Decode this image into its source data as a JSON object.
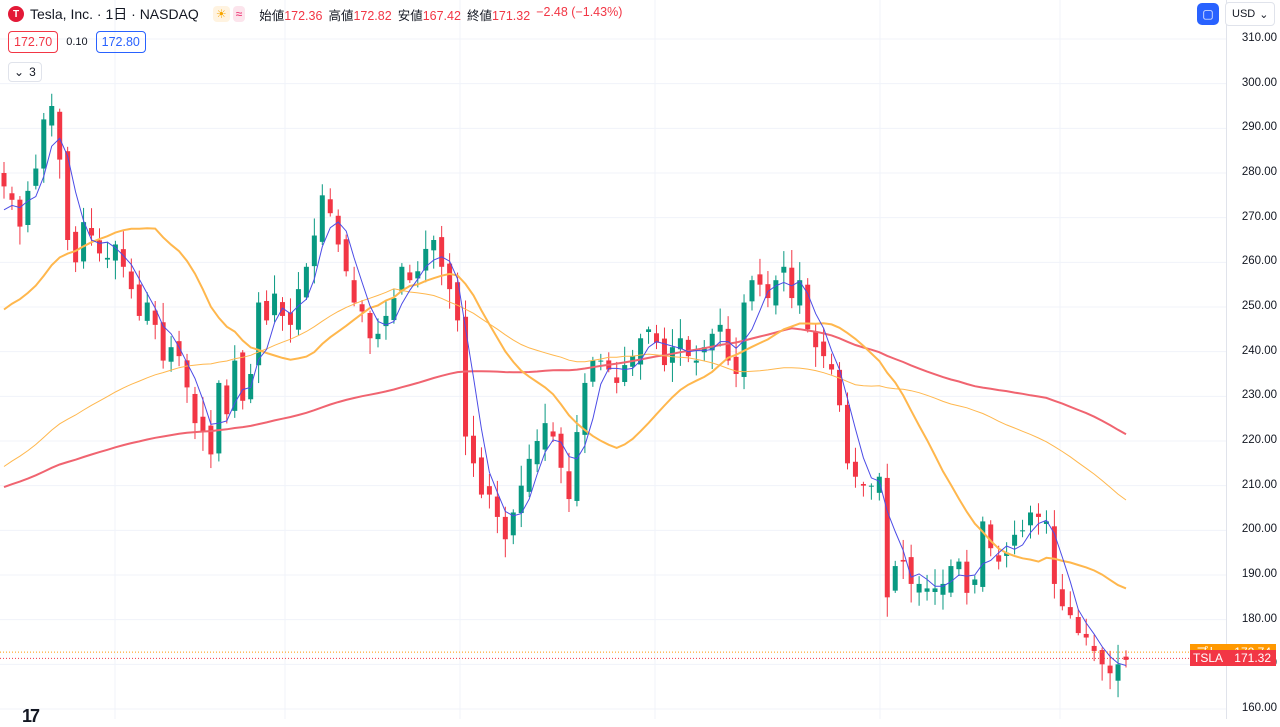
{
  "header": {
    "logo_letter": "T",
    "title": "Tesla, Inc. · 1日 · NASDAQ",
    "market_icons": [
      "sun-icon",
      "wave-icon"
    ],
    "ohlc": [
      {
        "key": "始値",
        "value": "172.36"
      },
      {
        "key": "高値",
        "value": "172.82"
      },
      {
        "key": "安値",
        "value": "167.42"
      },
      {
        "key": "終値",
        "value": "171.32"
      },
      {
        "key": "",
        "value": "−2.48 (−1.43%)"
      }
    ]
  },
  "quote": {
    "sell": "172.70",
    "spread": "0.10",
    "buy": "172.80"
  },
  "indicators_toggle": {
    "icon": "chevron-down-icon",
    "count": "3"
  },
  "toolbar": {
    "currency": "USD",
    "snap_icon": "snapshot-icon"
  },
  "price_tags": [
    {
      "name": "プレ",
      "price": "172.74",
      "color": "#ff9800"
    },
    {
      "name": "TSLA",
      "price": "171.32",
      "color": "#f23645"
    }
  ],
  "colors": {
    "up": "#089981",
    "down": "#f23645",
    "ma_fast": "#4c4ce6",
    "ma_mid": "#ffb74d",
    "ma_slow_thin": "#ffb74d",
    "ma_long": "#f06470"
  },
  "chart_data": {
    "type": "candlestick",
    "ylim": [
      158,
      313
    ],
    "y_ticks": [
      "310.00",
      "300.00",
      "290.00",
      "280.00",
      "270.00",
      "260.00",
      "250.00",
      "240.00",
      "230.00",
      "220.00",
      "210.00",
      "200.00",
      "190.00",
      "180.00",
      "170.00",
      "160.00"
    ],
    "close": [
      277,
      274,
      268,
      276,
      281,
      292,
      295,
      283,
      265,
      260,
      269,
      266,
      262,
      261,
      264,
      259,
      254,
      248,
      251,
      246,
      238,
      241,
      239,
      232,
      224,
      222,
      217,
      233,
      226,
      238,
      229,
      235,
      251,
      247,
      253,
      248,
      246,
      254,
      259,
      266,
      275,
      271,
      264,
      258,
      251,
      249,
      243,
      244,
      248,
      252,
      259,
      256,
      258,
      263,
      265,
      259,
      254,
      247,
      221,
      215,
      208,
      208,
      203,
      198,
      204,
      210,
      216,
      220,
      224,
      221,
      214,
      207,
      222,
      233,
      238,
      238,
      236,
      233,
      237,
      239,
      243,
      245,
      242,
      237,
      241,
      243,
      239,
      238,
      241,
      244,
      246,
      238,
      235,
      251,
      256,
      255,
      252,
      256,
      259,
      252,
      256,
      245,
      241,
      239,
      236,
      228,
      215,
      212,
      210,
      210,
      212,
      185,
      192,
      193,
      188,
      188,
      187,
      187,
      188,
      192,
      193,
      186,
      189,
      202,
      196,
      193,
      195,
      199,
      200,
      204,
      203,
      202,
      188,
      183,
      181,
      177,
      176,
      173,
      170,
      168,
      170,
      171
    ],
    "ma_fast_start": 270,
    "ma_mid_start": 248,
    "ma_slow_start": 213,
    "ma_long_start": 209
  }
}
